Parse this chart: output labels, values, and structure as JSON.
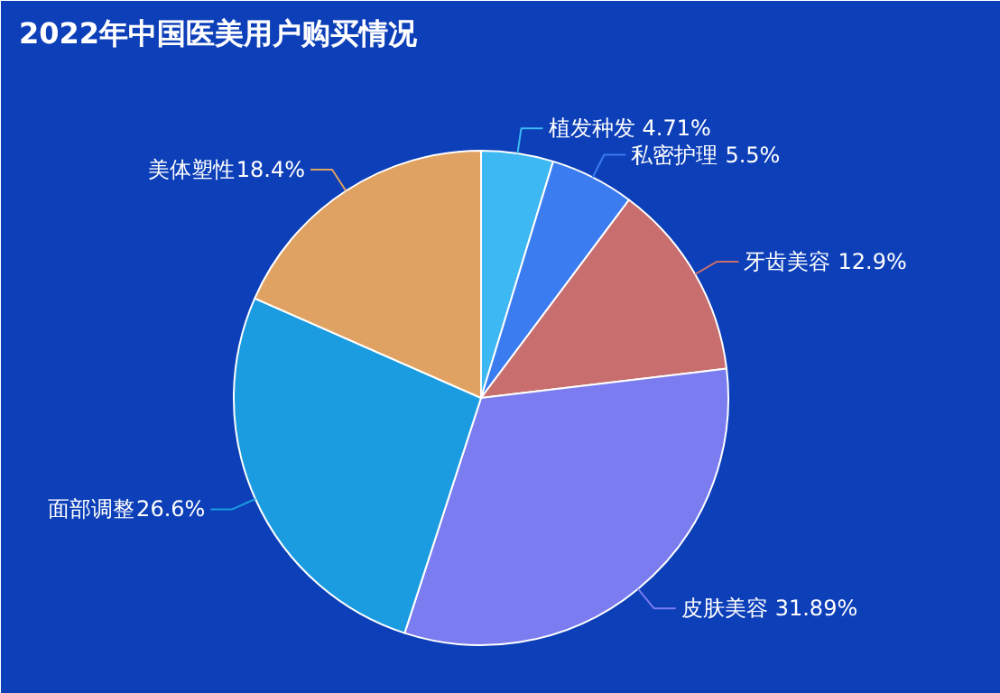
{
  "chart_data": {
    "type": "pie",
    "title": "2022年中国医美用户购买情况",
    "categories": [
      "植发种发",
      "私密护理",
      "牙齿美容",
      "皮肤美容",
      "面部调整",
      "美体塑性"
    ],
    "values": [
      4.71,
      5.5,
      12.9,
      31.89,
      26.6,
      18.4
    ],
    "colors": [
      "#3db8f2",
      "#3b7cf0",
      "#c86e6e",
      "#7b7cf0",
      "#1b9ce0",
      "#e0a262"
    ],
    "value_labels": [
      "4.71%",
      "5.5%",
      "12.9%",
      "31.89%",
      "26.6%",
      "18.4%"
    ]
  }
}
